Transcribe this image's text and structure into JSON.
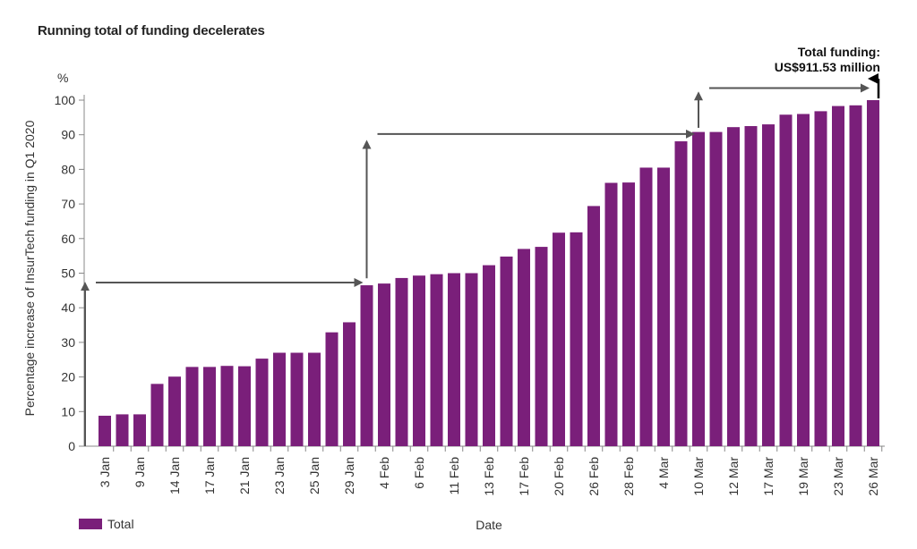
{
  "chart_data": {
    "type": "bar",
    "title": "Running total of funding decelerates",
    "xlabel": "Date",
    "ylabel": "Percentage increase of InsurTech funding in Q1 2020",
    "yunit": "%",
    "ylim": [
      0,
      100
    ],
    "yticks": [
      0,
      10,
      20,
      30,
      40,
      50,
      60,
      70,
      80,
      90,
      100
    ],
    "grid": false,
    "legend_position": "bottom-left",
    "categories": [
      "3 Jan",
      "",
      "9 Jan",
      "",
      "14 Jan",
      "",
      "17 Jan",
      "",
      "21 Jan",
      "",
      "23 Jan",
      "",
      "25 Jan",
      "",
      "29 Jan",
      "",
      "4 Feb",
      "",
      "6 Feb",
      "",
      "11 Feb",
      "",
      "13 Feb",
      "",
      "17 Feb",
      "",
      "20 Feb",
      "",
      "26 Feb",
      "",
      "28 Feb",
      "",
      "4 Mar",
      "",
      "10 Mar",
      "",
      "12 Mar",
      "",
      "17 Mar",
      "",
      "19 Mar",
      "",
      "23 Mar",
      "",
      "26 Mar"
    ],
    "series": [
      {
        "name": "Total",
        "color": "#7a1f7a",
        "values": [
          8.8,
          9.2,
          9.2,
          18.0,
          20.1,
          22.9,
          22.9,
          23.2,
          23.1,
          25.3,
          27.0,
          27.0,
          27.0,
          32.9,
          35.8,
          46.5,
          47.0,
          48.6,
          49.3,
          49.7,
          50.0,
          50.0,
          52.3,
          54.8,
          57.0,
          57.6,
          61.7,
          61.8,
          69.4,
          76.1,
          76.2,
          80.5,
          80.5,
          88.1,
          90.8,
          90.8,
          92.2,
          92.5,
          93.0,
          95.8,
          96.0,
          96.8,
          98.3,
          98.5,
          100.0
        ]
      }
    ],
    "annotation": {
      "line1": "Total funding:",
      "line2": "US$911.53 million"
    }
  },
  "legend": {
    "label": "Total",
    "color": "#7a1f7a"
  },
  "colors": {
    "bar": "#7a1f7a",
    "arrow": "#555555",
    "final_arrow": "#000000"
  }
}
